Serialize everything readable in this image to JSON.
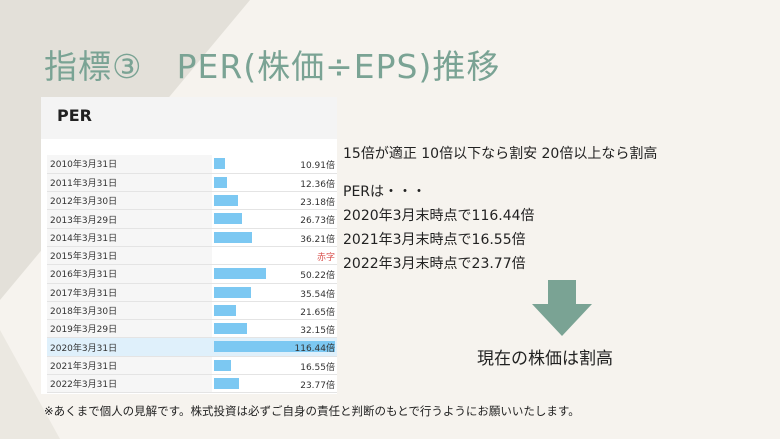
{
  "title": "指標③　PER(株価÷EPS)推移",
  "table": {
    "header": "PER",
    "rows": [
      {
        "date": "2010年3月31日",
        "value": 10.91,
        "label": "10.91倍"
      },
      {
        "date": "2011年3月31日",
        "value": 12.36,
        "label": "12.36倍"
      },
      {
        "date": "2012年3月30日",
        "value": 23.18,
        "label": "23.18倍"
      },
      {
        "date": "2013年3月29日",
        "value": 26.73,
        "label": "26.73倍"
      },
      {
        "date": "2014年3月31日",
        "value": 36.21,
        "label": "36.21倍"
      },
      {
        "date": "2015年3月31日",
        "value": null,
        "label": "赤字"
      },
      {
        "date": "2016年3月31日",
        "value": 50.22,
        "label": "50.22倍"
      },
      {
        "date": "2017年3月31日",
        "value": 35.54,
        "label": "35.54倍"
      },
      {
        "date": "2018年3月30日",
        "value": 21.65,
        "label": "21.65倍"
      },
      {
        "date": "2019年3月29日",
        "value": 32.15,
        "label": "32.15倍"
      },
      {
        "date": "2020年3月31日",
        "value": 116.44,
        "label": "116.44倍"
      },
      {
        "date": "2021年3月31日",
        "value": 16.55,
        "label": "16.55倍"
      },
      {
        "date": "2022年3月31日",
        "value": 23.77,
        "label": "23.77倍"
      }
    ],
    "colors": {
      "bar": "#7cc8f2",
      "deficit_text": "#d9534f",
      "highlight_row": "#dff0fb"
    }
  },
  "guideline": "15倍が適正 10倍以下なら割安 20倍以上なら割高",
  "per_intro": "PERは・・・",
  "per_points": [
    "2020年3月末時点で116.44倍",
    "2021年3月末時点で16.55倍",
    "2022年3月末時点で23.77倍"
  ],
  "conclusion": "現在の株価は割高",
  "footnote": "※あくまで個人の見解です。株式投資は必ずご自身の責任と判断のもとで行うようにお願いいたします。",
  "colors": {
    "title": "#7aa394",
    "arrow": "#7aa394",
    "background": "#ebe8e1"
  }
}
